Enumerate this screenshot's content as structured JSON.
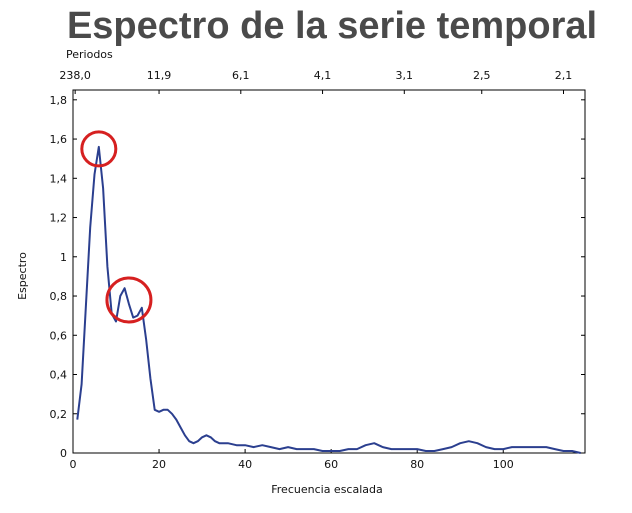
{
  "chart_data": {
    "type": "line",
    "title": "Espectro de la serie temporal",
    "xlabel": "Frecuencia escalada",
    "ylabel": "Espectro",
    "top_axis_label": "Periodos",
    "xlim": [
      0,
      119
    ],
    "ylim": [
      0,
      1.85
    ],
    "x_ticks": [
      0,
      20,
      40,
      60,
      80,
      100
    ],
    "x_tick_labels": [
      "0",
      "20",
      "40",
      "60",
      "80",
      "100"
    ],
    "y_ticks": [
      0,
      0.2,
      0.4,
      0.6,
      0.8,
      1.0,
      1.2,
      1.4,
      1.6,
      1.8
    ],
    "y_tick_labels": [
      "0",
      "0,2",
      "0,4",
      "0,6",
      "0,8",
      "1",
      "1,2",
      "1,4",
      "1,6",
      "1,8"
    ],
    "top_ticks": [
      {
        "x": 0.5,
        "label": "238,0"
      },
      {
        "x": 20,
        "label": "11,9"
      },
      {
        "x": 39,
        "label": "6,1"
      },
      {
        "x": 58,
        "label": "4,1"
      },
      {
        "x": 77,
        "label": "3,1"
      },
      {
        "x": 95,
        "label": "2,5"
      },
      {
        "x": 114,
        "label": "2,1"
      }
    ],
    "grid": false,
    "line_color": "#2b3f8f",
    "highlight_color": "#d62020",
    "highlights": [
      {
        "x": 6,
        "y": 1.55
      },
      {
        "x": 13,
        "y": 0.78
      }
    ],
    "series": [
      {
        "x": [
          1,
          2,
          3,
          4,
          5,
          6,
          7,
          8,
          9,
          10,
          11,
          12,
          13,
          14,
          15,
          16,
          17,
          18,
          19,
          20,
          21,
          22,
          23,
          24,
          25,
          26,
          27,
          28,
          29,
          30,
          31,
          32,
          33,
          34,
          35,
          36,
          38,
          40,
          42,
          44,
          46,
          48,
          50,
          52,
          54,
          56,
          58,
          60,
          62,
          64,
          66,
          68,
          70,
          72,
          74,
          76,
          78,
          80,
          82,
          84,
          86,
          88,
          90,
          92,
          94,
          96,
          98,
          100,
          102,
          104,
          106,
          108,
          110,
          112,
          114,
          116,
          118
        ],
        "values": [
          0.17,
          0.35,
          0.75,
          1.15,
          1.42,
          1.56,
          1.35,
          0.95,
          0.71,
          0.67,
          0.8,
          0.84,
          0.76,
          0.69,
          0.7,
          0.74,
          0.58,
          0.38,
          0.22,
          0.21,
          0.22,
          0.22,
          0.2,
          0.17,
          0.13,
          0.09,
          0.06,
          0.05,
          0.06,
          0.08,
          0.09,
          0.08,
          0.06,
          0.05,
          0.05,
          0.05,
          0.04,
          0.04,
          0.03,
          0.04,
          0.03,
          0.02,
          0.03,
          0.02,
          0.02,
          0.02,
          0.01,
          0.01,
          0.01,
          0.02,
          0.02,
          0.04,
          0.05,
          0.03,
          0.02,
          0.02,
          0.02,
          0.02,
          0.01,
          0.01,
          0.02,
          0.03,
          0.05,
          0.06,
          0.05,
          0.03,
          0.02,
          0.02,
          0.03,
          0.03,
          0.03,
          0.03,
          0.03,
          0.02,
          0.01,
          0.01,
          0.0
        ]
      }
    ]
  }
}
